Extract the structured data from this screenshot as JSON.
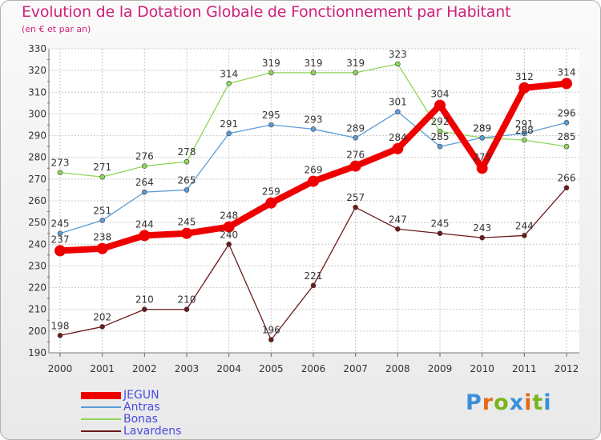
{
  "title": "Evolution de la Dotation Globale de Fonctionnement par Habitant",
  "subtitle": "(en € et par an)",
  "logo": {
    "text": "Proxiti",
    "colors": [
      "#3a8fd8",
      "#e36b17",
      "#7ab41f",
      "#3a8fd8",
      "#e36b17",
      "#7ab41f",
      "#3a8fd8"
    ]
  },
  "chart_data": {
    "type": "line",
    "title": "Evolution de la Dotation Globale de Fonctionnement par Habitant",
    "subtitle": "(en € et par an)",
    "xlabel": "",
    "ylabel": "",
    "ylim": [
      190,
      330
    ],
    "yticks": [
      190,
      200,
      210,
      220,
      230,
      240,
      250,
      260,
      270,
      280,
      290,
      300,
      310,
      320,
      330
    ],
    "grid": true,
    "legend_position": "bottom-left",
    "categories": [
      "2000",
      "2001",
      "2002",
      "2003",
      "2004",
      "2005",
      "2006",
      "2007",
      "2008",
      "2009",
      "2010",
      "2011",
      "2012"
    ],
    "series": [
      {
        "name": "Lavardens",
        "color": "#6b1a1a",
        "values": [
          198,
          202,
          210,
          210,
          240,
          196,
          221,
          257,
          247,
          245,
          243,
          244,
          266
        ]
      },
      {
        "name": "Bonas",
        "color": "#8ed65a",
        "values": [
          273,
          271,
          276,
          278,
          314,
          319,
          319,
          319,
          323,
          292,
          289,
          288,
          285
        ]
      },
      {
        "name": "Antras",
        "color": "#5b9bd5",
        "values": [
          245,
          251,
          264,
          265,
          291,
          295,
          293,
          289,
          301,
          285,
          289,
          291,
          296
        ]
      },
      {
        "name": "JEGUN",
        "color": "#ee0000",
        "values": [
          237,
          238,
          244,
          245,
          248,
          259,
          269,
          276,
          284,
          304,
          275,
          312,
          314
        ]
      }
    ],
    "legend": [
      "JEGUN",
      "Antras",
      "Bonas",
      "Lavardens"
    ]
  }
}
